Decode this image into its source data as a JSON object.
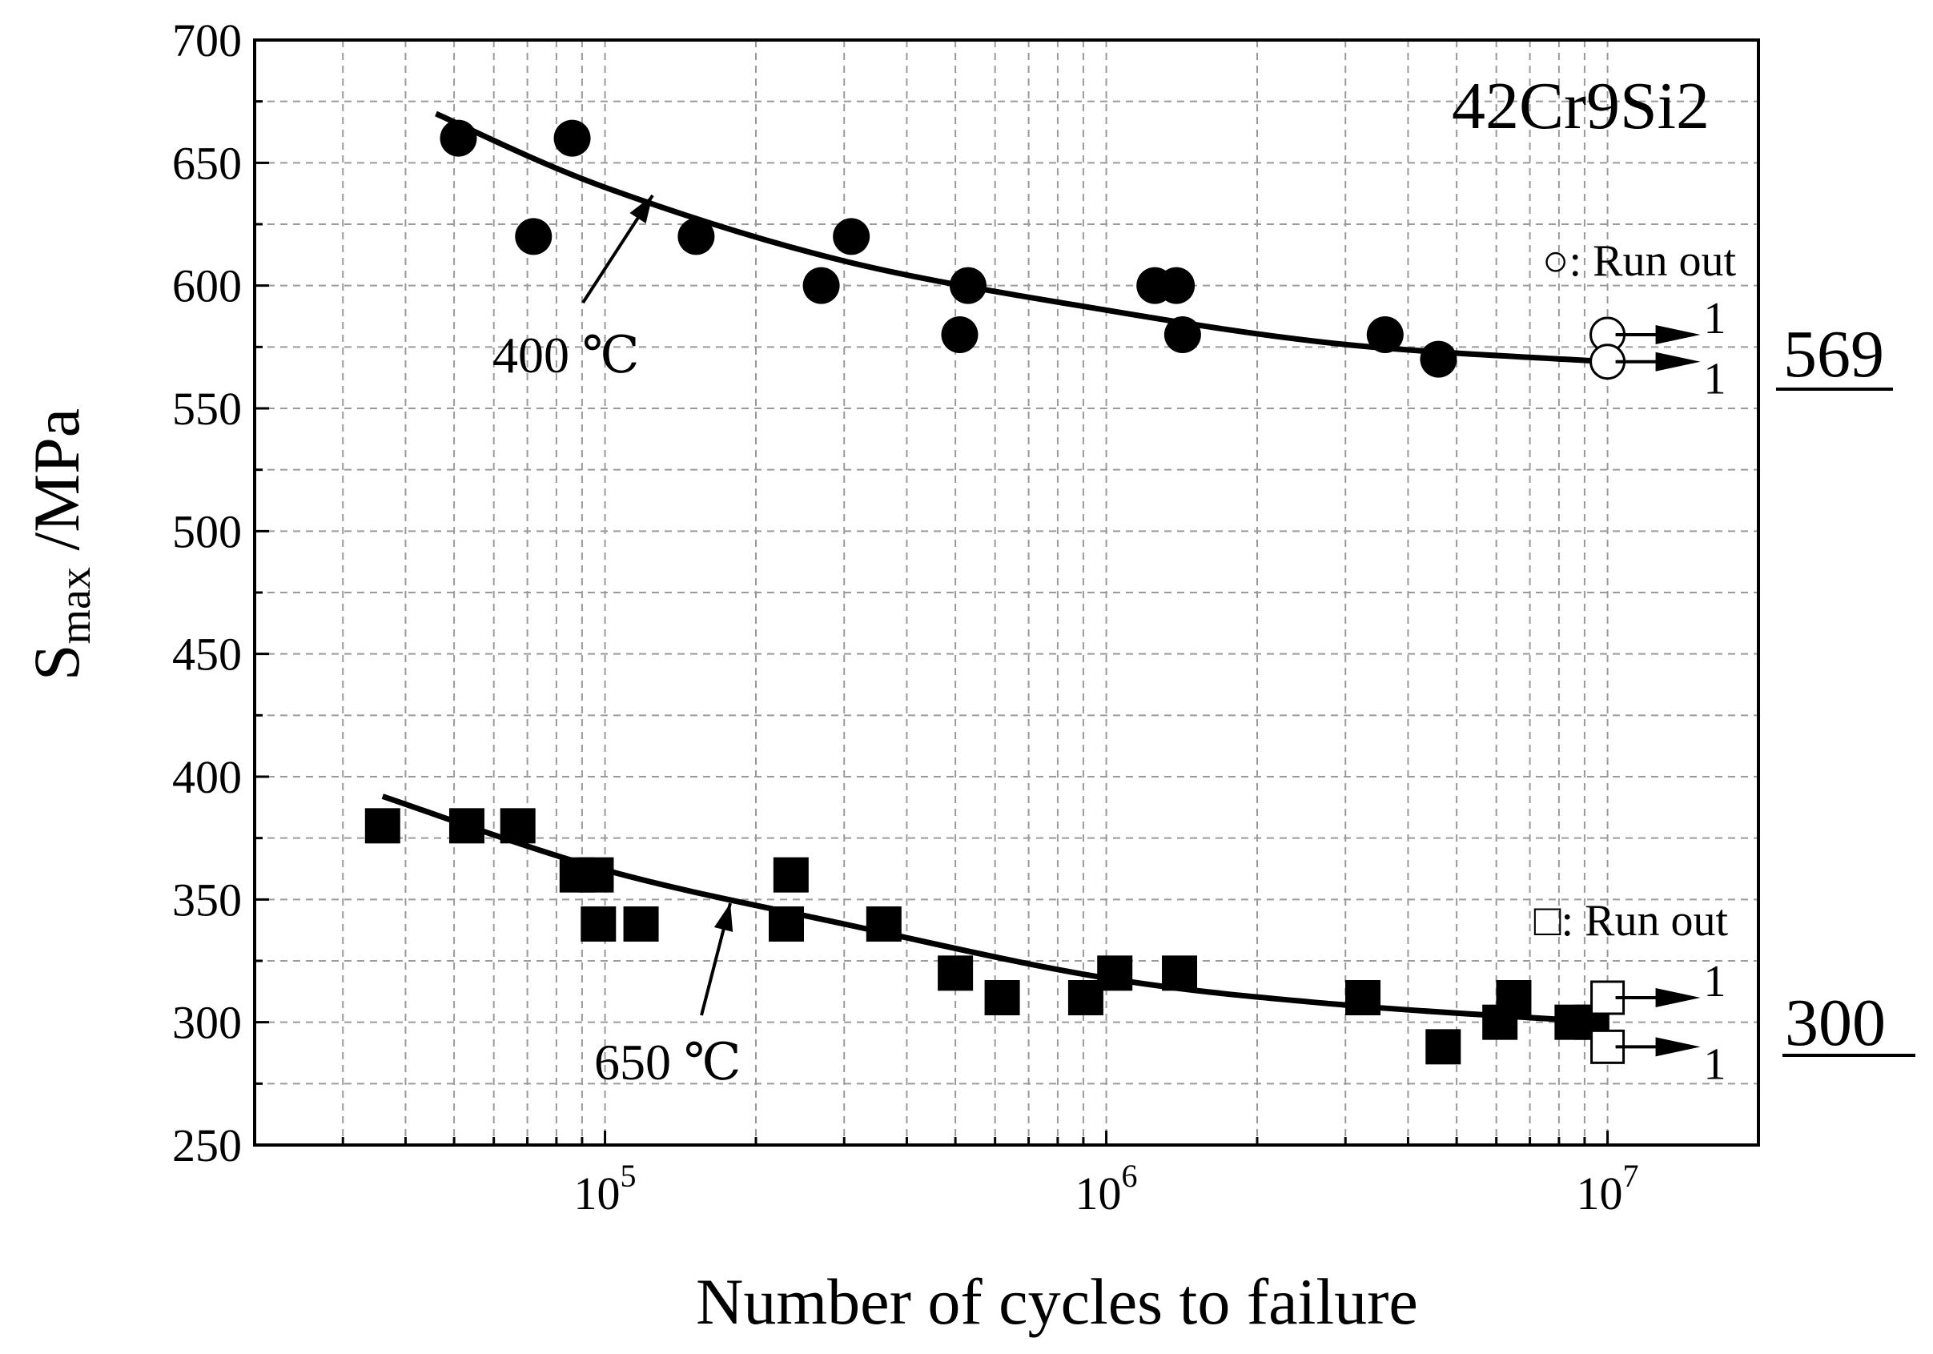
{
  "chart_data": {
    "type": "scatter",
    "title": "42Cr9Si2",
    "xlabel": "Number of cycles to failure",
    "ylabel": "Smax /MPa",
    "ylabel_main": "S",
    "ylabel_sub": "max",
    "ylabel_unit": " /MPa",
    "x_scale": "log",
    "xlim": [
      20000,
      20000000
    ],
    "ylim": [
      250,
      700
    ],
    "grid": true,
    "x_ticks": [
      {
        "base": "10",
        "exp": "5",
        "value": 100000
      },
      {
        "base": "10",
        "exp": "6",
        "value": 1000000
      },
      {
        "base": "10",
        "exp": "7",
        "value": 10000000
      }
    ],
    "y_ticks": [
      "250",
      "300",
      "350",
      "400",
      "450",
      "500",
      "550",
      "600",
      "650",
      "700"
    ],
    "series": [
      {
        "name": "400 ℃",
        "marker": "circle",
        "points": [
          [
            51000,
            660
          ],
          [
            72000,
            620
          ],
          [
            86000,
            660
          ],
          [
            152000,
            620
          ],
          [
            270000,
            600
          ],
          [
            310000,
            620
          ],
          [
            510000,
            580
          ],
          [
            530000,
            600
          ],
          [
            1250000,
            600
          ],
          [
            1380000,
            600
          ],
          [
            1420000,
            580
          ],
          [
            3600000,
            580
          ],
          [
            4600000,
            570
          ]
        ],
        "fit": [
          [
            46000,
            670
          ],
          [
            100000,
            640
          ],
          [
            300000,
            610
          ],
          [
            1000000,
            590
          ],
          [
            3000000,
            576
          ],
          [
            10000000,
            569
          ]
        ],
        "runouts": [
          [
            10000000,
            580
          ],
          [
            10000000,
            569
          ]
        ],
        "runout_counts": [
          "1",
          "1"
        ],
        "fatigue_limit": "569",
        "label": "400 ℃",
        "runout_legend": "○: Run out"
      },
      {
        "name": "650 ℃",
        "marker": "square",
        "points": [
          [
            36000,
            380
          ],
          [
            53000,
            380
          ],
          [
            67000,
            380
          ],
          [
            88000,
            360
          ],
          [
            96000,
            360
          ],
          [
            97000,
            340
          ],
          [
            118000,
            340
          ],
          [
            230000,
            340
          ],
          [
            235000,
            360
          ],
          [
            360000,
            340
          ],
          [
            500000,
            320
          ],
          [
            620000,
            310
          ],
          [
            910000,
            310
          ],
          [
            1040000,
            320
          ],
          [
            1400000,
            320
          ],
          [
            3250000,
            310
          ],
          [
            4700000,
            290
          ],
          [
            6100000,
            300
          ],
          [
            6500000,
            310
          ],
          [
            8500000,
            300
          ],
          [
            9300000,
            300
          ]
        ],
        "fit": [
          [
            36000,
            392
          ],
          [
            100000,
            362
          ],
          [
            300000,
            340
          ],
          [
            1000000,
            318
          ],
          [
            3000000,
            307
          ],
          [
            10000000,
            300
          ]
        ],
        "runouts": [
          [
            10000000,
            310
          ],
          [
            10000000,
            290
          ]
        ],
        "runout_counts": [
          "1",
          "1"
        ],
        "fatigue_limit": "300",
        "label": "650 ℃",
        "runout_legend": "□: Run out"
      }
    ]
  }
}
